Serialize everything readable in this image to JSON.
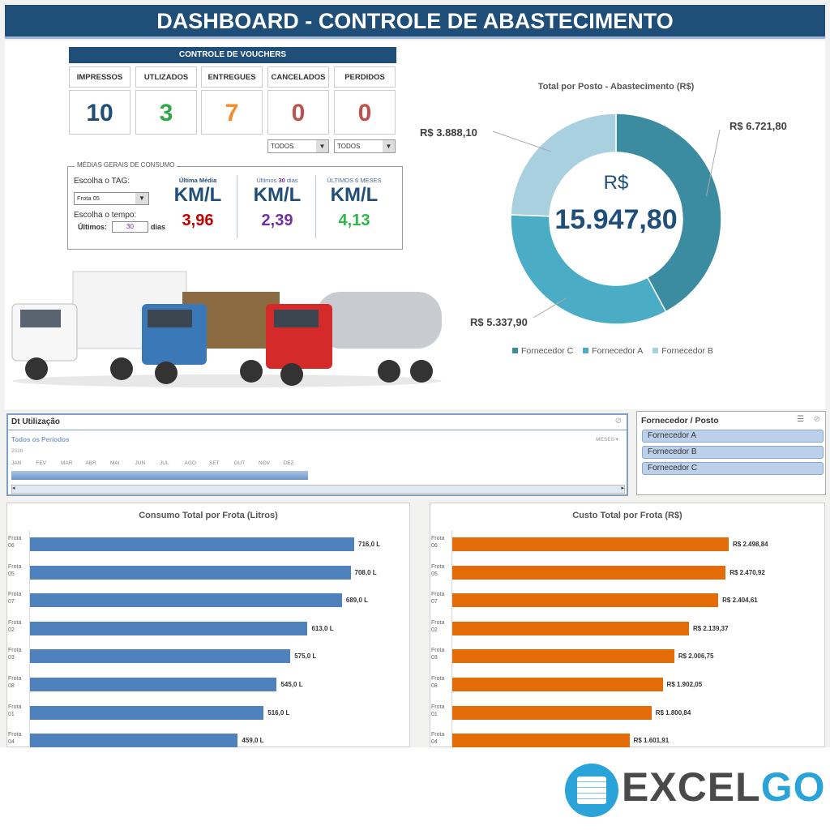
{
  "header": {
    "title": "DASHBOARD - CONTROLE DE ABASTECIMENTO"
  },
  "vouchers": {
    "title": "CONTROLE DE VOUCHERS",
    "items": [
      {
        "label": "IMPRESSOS",
        "value": "10",
        "color": "#1f4e79"
      },
      {
        "label": "UTLIZADOS",
        "value": "3",
        "color": "#2ea84a"
      },
      {
        "label": "ENTREGUES",
        "value": "7",
        "color": "#f28c28"
      },
      {
        "label": "CANCELADOS",
        "value": "0",
        "color": "#c0504d"
      },
      {
        "label": "PERDIDOS",
        "value": "0",
        "color": "#c0504d"
      }
    ],
    "filters": [
      "TODOS",
      "TODOS"
    ]
  },
  "medias": {
    "title": "MÉDIAS GERAIS DE CONSUMO",
    "tag_label": "Escolha o TAG:",
    "tag_value": "Frota 05",
    "tempo_label": "Escolha o tempo:",
    "ultimos_label": "Últimos:",
    "ultimos_value": "30",
    "dias": "dias",
    "cols": [
      {
        "title": "Última Média",
        "unit": "KM/L",
        "value": "3,96",
        "color": "#c00000"
      },
      {
        "title_pre": "Últimos",
        "title_num": "30",
        "title_post": "dias",
        "unit": "KM/L",
        "value": "2,39",
        "color": "#7030a0"
      },
      {
        "title": "ÚLTIMOS 6 MESES",
        "unit": "KM/L",
        "value": "4,13",
        "color": "#2eb84a"
      }
    ]
  },
  "donut": {
    "title": "Total por Posto - Abastecimento (R$)",
    "center_label": "R$",
    "center_value": "15.947,80",
    "slices": [
      {
        "name": "Fornecedor C",
        "value": 6721.8,
        "label": "R$ 6.721,80",
        "color": "#3b8ba1"
      },
      {
        "name": "Fornecedor A",
        "value": 5337.9,
        "label": "R$ 5.337,90",
        "color": "#4bacc6"
      },
      {
        "name": "Fornecedor B",
        "value": 3888.1,
        "label": "R$ 3.888,10",
        "color": "#a9d0df"
      }
    ]
  },
  "slicer_date": {
    "title": "Dt Utilização",
    "all": "Todos os Períodos",
    "level": "MESES",
    "year": "2026",
    "months": [
      "JAN",
      "FEV",
      "MAR",
      "ABR",
      "MAI",
      "JUN",
      "JUL",
      "AGO",
      "SET",
      "OUT",
      "NOV",
      "DEZ"
    ]
  },
  "slicer_forn": {
    "title": "Fornecedor / Posto",
    "items": [
      "Fornecedor A",
      "Fornecedor B",
      "Fornecedor C"
    ]
  },
  "chart_data": [
    {
      "type": "bar",
      "title": "Consumo Total por Frota (Litros)",
      "orientation": "horizontal",
      "color": "#4f81bd",
      "categories": [
        "Frota 06",
        "Frota 05",
        "Frota 07",
        "Frota 02",
        "Frota 03",
        "Frota 08",
        "Frota 01",
        "Frota 04"
      ],
      "values": [
        716.0,
        708.0,
        689.0,
        613.0,
        575.0,
        545.0,
        516.0,
        459.0
      ],
      "labels": [
        "716,0 L",
        "708,0 L",
        "689,0 L",
        "613,0 L",
        "575,0 L",
        "545,0 L",
        "516,0 L",
        "459,0 L"
      ]
    },
    {
      "type": "bar",
      "title": "Custo Total por Frota (R$)",
      "orientation": "horizontal",
      "color": "#e36c09",
      "categories": [
        "Frota 06",
        "Frota 05",
        "Frota 07",
        "Frota 02",
        "Frota 03",
        "Frota 08",
        "Frota 01",
        "Frota 04"
      ],
      "values": [
        2498.84,
        2470.92,
        2404.61,
        2139.37,
        2006.75,
        1902.05,
        1800.84,
        1601.91
      ],
      "labels": [
        "R$ 2.498,84",
        "R$ 2.470,92",
        "R$ 2.404,61",
        "R$ 2.139,37",
        "R$ 2.006,75",
        "R$ 1.902,05",
        "R$ 1.800,84",
        "R$ 1.601,91"
      ]
    }
  ],
  "logo": {
    "text_a": "EXCEL",
    "text_b": "GO"
  }
}
